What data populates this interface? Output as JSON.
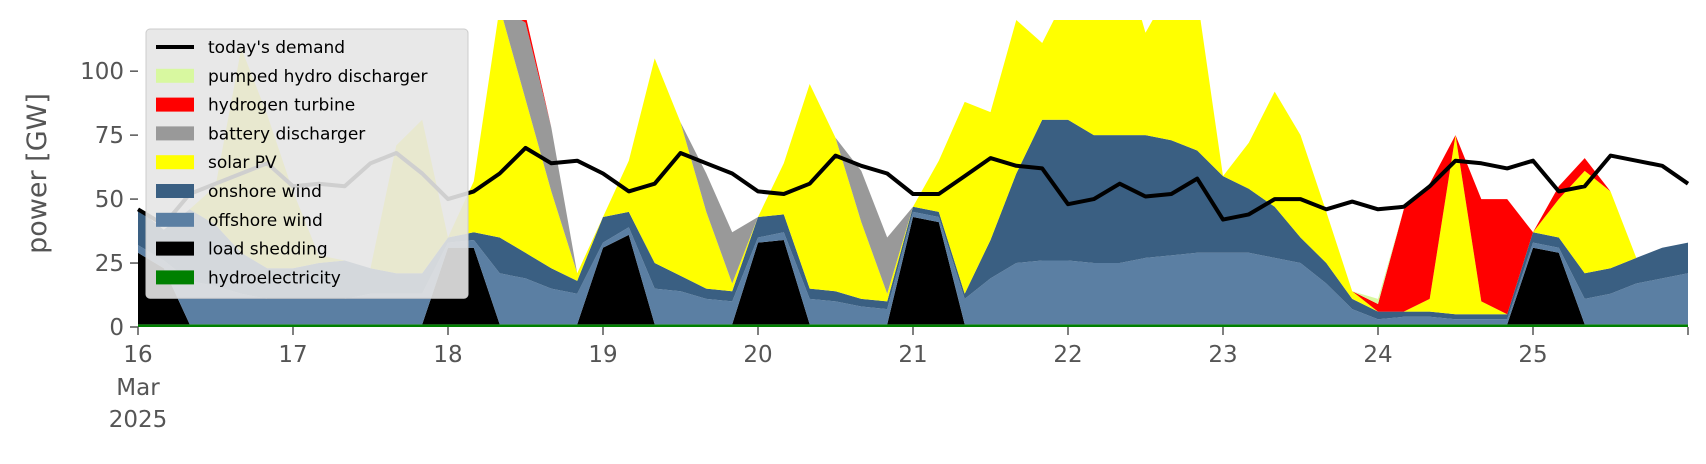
{
  "chart_data": {
    "type": "area",
    "title": "",
    "xlabel": "",
    "ylabel": "power [GW]",
    "ylim": [
      0,
      120
    ],
    "y_ticks": [
      0,
      25,
      50,
      75,
      100
    ],
    "xlim": [
      0,
      240
    ],
    "x_unit": "hours from 16 Mar 2025 00:00",
    "x_ticks": [
      {
        "h": 0,
        "label": "16",
        "sub": [
          "Mar",
          "2025"
        ]
      },
      {
        "h": 24,
        "label": "17"
      },
      {
        "h": 48,
        "label": "18"
      },
      {
        "h": 72,
        "label": "19"
      },
      {
        "h": 96,
        "label": "20"
      },
      {
        "h": 120,
        "label": "21"
      },
      {
        "h": 144,
        "label": "22"
      },
      {
        "h": 168,
        "label": "23"
      },
      {
        "h": 192,
        "label": "24"
      },
      {
        "h": 216,
        "label": "25"
      },
      {
        "h": 240,
        "label": ""
      }
    ],
    "grid": false,
    "legend_position": "top-left",
    "x": [
      0,
      4,
      8,
      12,
      16,
      20,
      24,
      28,
      32,
      36,
      40,
      44,
      48,
      52,
      56,
      60,
      64,
      68,
      72,
      76,
      80,
      84,
      88,
      92,
      96,
      100,
      104,
      108,
      112,
      116,
      120,
      124,
      128,
      132,
      136,
      140,
      144,
      148,
      152,
      156,
      160,
      164,
      168,
      172,
      176,
      180,
      184,
      188,
      192,
      196,
      200,
      204,
      208,
      212,
      216,
      220,
      224,
      228,
      232,
      236,
      240
    ],
    "series": [
      {
        "name": "hydroelectricity",
        "color": "#008000",
        "values": [
          1,
          1,
          1,
          1,
          1,
          1,
          1,
          1,
          1,
          1,
          1,
          1,
          1,
          1,
          1,
          1,
          1,
          1,
          1,
          1,
          1,
          1,
          1,
          1,
          1,
          1,
          1,
          1,
          1,
          1,
          1,
          1,
          1,
          1,
          1,
          1,
          1,
          1,
          1,
          1,
          1,
          1,
          1,
          1,
          1,
          1,
          1,
          1,
          1,
          1,
          1,
          1,
          1,
          1,
          1,
          1,
          1,
          1,
          1,
          1,
          1
        ]
      },
      {
        "name": "load shedding",
        "color": "#000000",
        "values": [
          28,
          22,
          0,
          0,
          0,
          0,
          0,
          0,
          0,
          0,
          0,
          0,
          30,
          30,
          0,
          0,
          0,
          0,
          30,
          35,
          0,
          0,
          0,
          0,
          32,
          33,
          0,
          0,
          0,
          0,
          42,
          40,
          0,
          0,
          0,
          0,
          0,
          0,
          0,
          0,
          0,
          0,
          0,
          0,
          0,
          0,
          0,
          0,
          0,
          0,
          0,
          0,
          0,
          0,
          30,
          28,
          0,
          0,
          0,
          0,
          0
        ]
      },
      {
        "name": "offshore wind",
        "color": "#5b7fa3",
        "values": [
          3,
          3,
          17,
          15,
          12,
          10,
          10,
          10,
          10,
          12,
          12,
          12,
          2,
          3,
          20,
          18,
          14,
          12,
          2,
          3,
          14,
          13,
          10,
          9,
          2,
          3,
          10,
          9,
          7,
          6,
          2,
          2,
          10,
          18,
          24,
          25,
          25,
          24,
          24,
          26,
          27,
          28,
          28,
          28,
          26,
          24,
          16,
          6,
          2,
          3,
          3,
          2,
          2,
          2,
          2,
          2,
          10,
          12,
          16,
          18,
          20
        ]
      },
      {
        "name": "onshore wind",
        "color": "#3a5f82",
        "values": [
          14,
          12,
          28,
          24,
          16,
          12,
          12,
          14,
          15,
          10,
          8,
          8,
          2,
          3,
          14,
          10,
          8,
          5,
          10,
          6,
          10,
          6,
          4,
          4,
          8,
          7,
          4,
          4,
          3,
          3,
          2,
          2,
          2,
          15,
          35,
          55,
          55,
          50,
          50,
          48,
          45,
          40,
          30,
          25,
          20,
          10,
          8,
          4,
          3,
          2,
          2,
          2,
          2,
          2,
          4,
          4,
          10,
          10,
          10,
          12,
          12
        ]
      },
      {
        "name": "solar PV",
        "color": "#ffff00",
        "values": [
          0,
          0,
          0,
          15,
          80,
          60,
          30,
          3,
          0,
          0,
          50,
          60,
          0,
          20,
          90,
          60,
          30,
          3,
          0,
          20,
          80,
          60,
          30,
          3,
          0,
          20,
          80,
          60,
          30,
          3,
          0,
          20,
          75,
          50,
          60,
          30,
          50,
          95,
          75,
          40,
          60,
          60,
          0,
          18,
          45,
          40,
          20,
          3,
          0,
          0,
          5,
          70,
          5,
          0,
          0,
          15,
          40,
          30,
          0,
          0,
          0
        ]
      },
      {
        "name": "battery discharger",
        "color": "#999999",
        "values": [
          0,
          0,
          0,
          0,
          0,
          0,
          0,
          0,
          0,
          0,
          0,
          0,
          0,
          0,
          0,
          30,
          25,
          0,
          0,
          0,
          0,
          0,
          15,
          20,
          0,
          0,
          0,
          0,
          20,
          22,
          0,
          0,
          0,
          0,
          0,
          0,
          0,
          10,
          0,
          0,
          0,
          0,
          0,
          0,
          0,
          0,
          0,
          0,
          0,
          0,
          0,
          0,
          0,
          0,
          0,
          0,
          0,
          0,
          0,
          0,
          0
        ]
      },
      {
        "name": "hydrogen turbine",
        "color": "#ff0000",
        "values": [
          0,
          0,
          0,
          0,
          0,
          0,
          0,
          0,
          0,
          0,
          0,
          0,
          0,
          0,
          0,
          3,
          0,
          0,
          0,
          0,
          0,
          0,
          0,
          0,
          0,
          0,
          0,
          0,
          0,
          0,
          0,
          0,
          0,
          0,
          0,
          0,
          0,
          0,
          0,
          0,
          0,
          0,
          0,
          0,
          0,
          0,
          0,
          0,
          3,
          40,
          45,
          0,
          40,
          45,
          0,
          5,
          5,
          0,
          0,
          0,
          0
        ]
      },
      {
        "name": "pumped hydro discharger",
        "color": "#d8f8a0",
        "values": [
          0,
          0,
          0,
          0,
          0,
          0,
          0,
          0,
          0,
          0,
          0,
          0,
          0,
          0,
          0,
          0,
          0,
          0,
          0,
          0,
          0,
          0,
          0,
          0,
          0,
          0,
          0,
          0,
          0,
          0,
          0,
          0,
          0,
          0,
          0,
          0,
          0,
          0,
          0,
          0,
          0,
          0,
          0,
          0,
          0,
          0,
          0,
          0,
          2,
          0,
          0,
          0,
          0,
          0,
          0,
          0,
          0,
          0,
          0,
          0,
          0
        ]
      },
      {
        "name": "today's demand",
        "color": "#000000",
        "kind": "line",
        "values": [
          46,
          40,
          52,
          56,
          60,
          64,
          55,
          56,
          55,
          64,
          68,
          60,
          50,
          53,
          60,
          70,
          64,
          65,
          60,
          53,
          56,
          68,
          64,
          60,
          53,
          52,
          56,
          67,
          63,
          60,
          52,
          52,
          59,
          66,
          63,
          62,
          48,
          50,
          56,
          51,
          52,
          58,
          42,
          44,
          50,
          50,
          46,
          49,
          46,
          47,
          55,
          65,
          64,
          62,
          65,
          53,
          55,
          67,
          65,
          63,
          56
        ]
      }
    ]
  }
}
